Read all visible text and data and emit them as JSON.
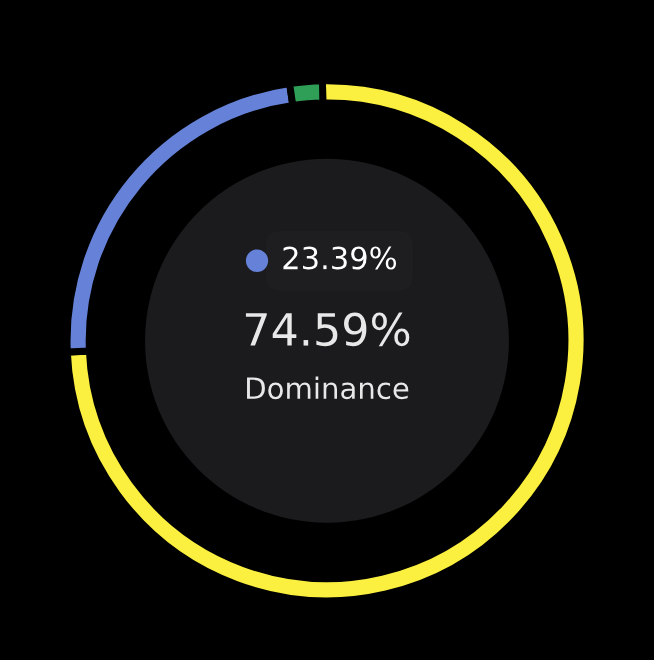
{
  "chart_data": {
    "type": "donut",
    "categories": [
      null,
      null,
      null
    ],
    "values": [
      74.59,
      23.39,
      2.02
    ],
    "colors": [
      "#fbf03f",
      "#6582d8",
      "#2f9e57"
    ],
    "annotations": [
      "74.59%",
      "Dominance",
      "23.39%"
    ]
  }
}
